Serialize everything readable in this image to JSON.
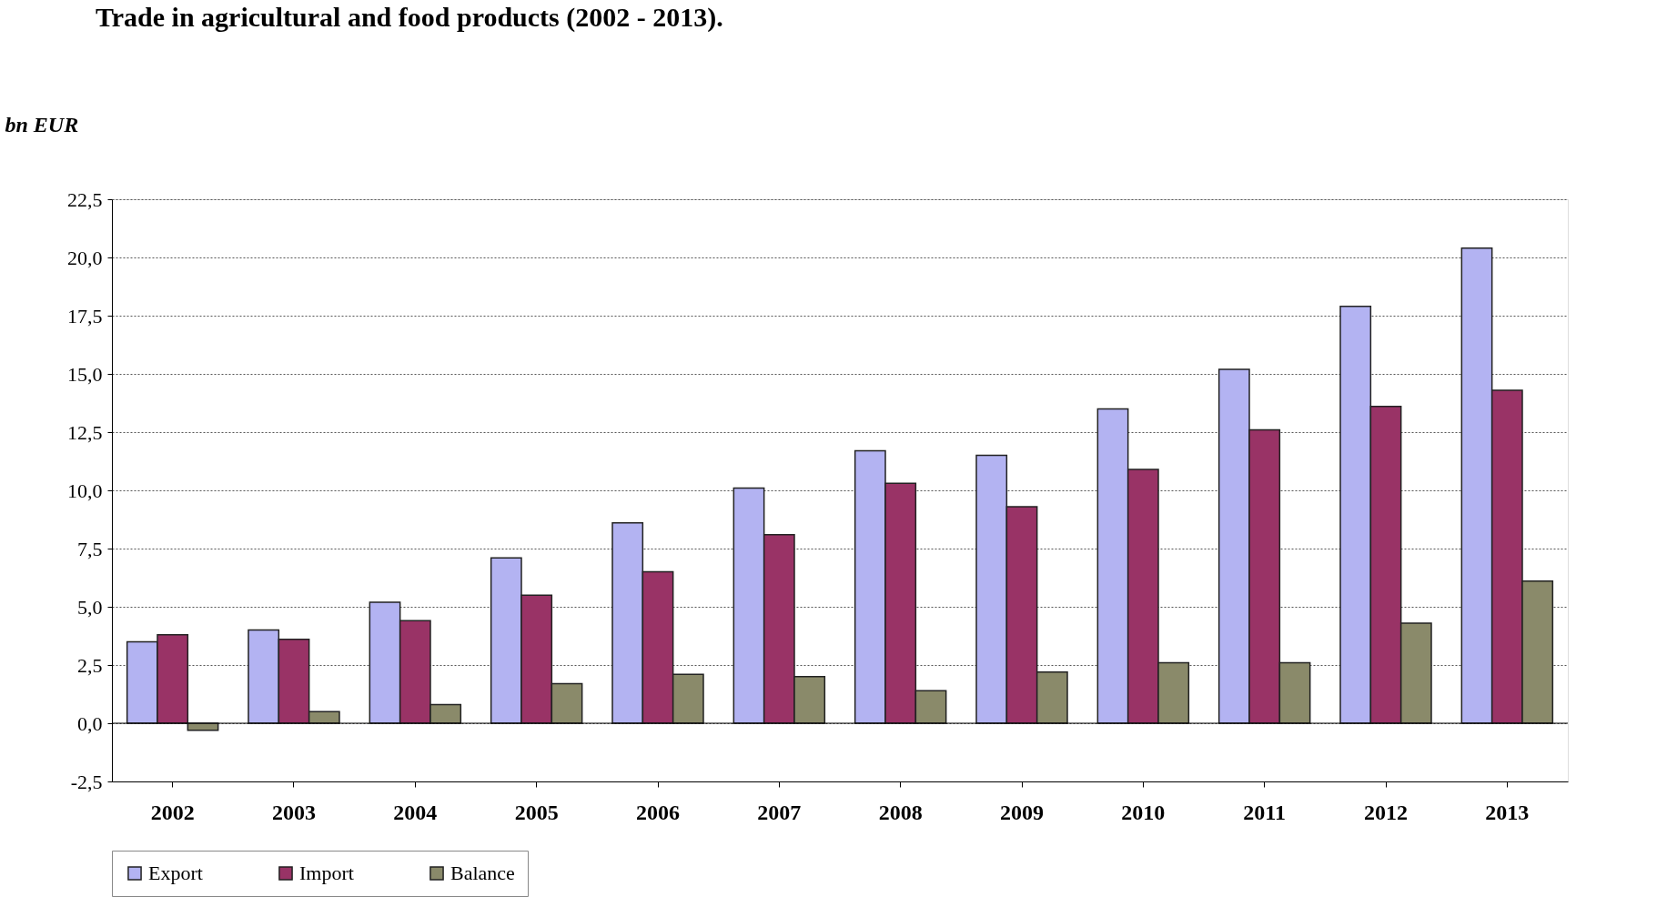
{
  "chart_data": {
    "type": "bar",
    "title": "Trade in agricultural and food products (2002 - 2013).",
    "ylabel": "bn EUR",
    "categories": [
      "2002",
      "2003",
      "2004",
      "2005",
      "2006",
      "2007",
      "2008",
      "2009",
      "2010",
      "2011",
      "2012",
      "2013"
    ],
    "series": [
      {
        "name": "Export",
        "color": "#b3b3f2",
        "values": [
          3.5,
          4.0,
          5.2,
          7.1,
          8.6,
          10.1,
          11.7,
          11.5,
          13.5,
          15.2,
          17.9,
          20.4
        ]
      },
      {
        "name": "Import",
        "color": "#993366",
        "values": [
          3.8,
          3.6,
          4.4,
          5.5,
          6.5,
          8.1,
          10.3,
          9.3,
          10.9,
          12.6,
          13.6,
          14.3
        ]
      },
      {
        "name": "Balance",
        "color": "#8a8a6a",
        "values": [
          -0.3,
          0.5,
          0.8,
          1.7,
          2.1,
          2.0,
          1.4,
          2.2,
          2.6,
          2.6,
          4.3,
          6.1
        ]
      }
    ],
    "ylim": [
      -2.5,
      22.5
    ],
    "yticks": [
      {
        "value": -2.5,
        "label": "-2,5"
      },
      {
        "value": 0,
        "label": "0,0"
      },
      {
        "value": 2.5,
        "label": "2,5"
      },
      {
        "value": 5,
        "label": "5,0"
      },
      {
        "value": 7.5,
        "label": "7,5"
      },
      {
        "value": 10,
        "label": "10,0"
      },
      {
        "value": 12.5,
        "label": "12,5"
      },
      {
        "value": 15,
        "label": "15,0"
      },
      {
        "value": 17.5,
        "label": "17,5"
      },
      {
        "value": 20,
        "label": "20,0"
      },
      {
        "value": 22.5,
        "label": "22,5"
      }
    ],
    "grid": "y",
    "legend": "bottom"
  }
}
